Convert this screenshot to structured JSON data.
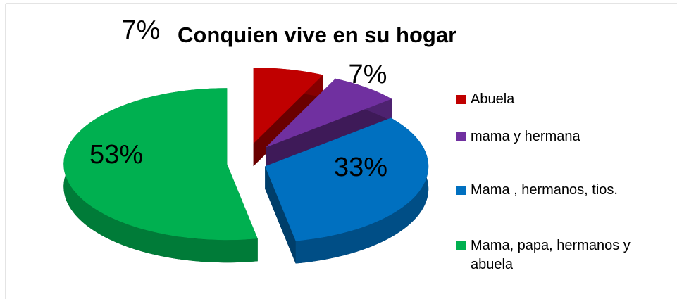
{
  "chart_data": {
    "type": "pie3d",
    "title": "Conquien vive en su hogar",
    "categories": [
      "Abuela",
      "mama y hermana",
      "Mama , hermanos, tios.",
      "Mama, papa, hermanos y abuela"
    ],
    "values": [
      7,
      7,
      33,
      53
    ],
    "value_labels": [
      "7%",
      "7%",
      "33%",
      "53%"
    ],
    "colors": [
      "#c00000",
      "#7030a0",
      "#0070c0",
      "#00b050"
    ],
    "legend": "right"
  }
}
